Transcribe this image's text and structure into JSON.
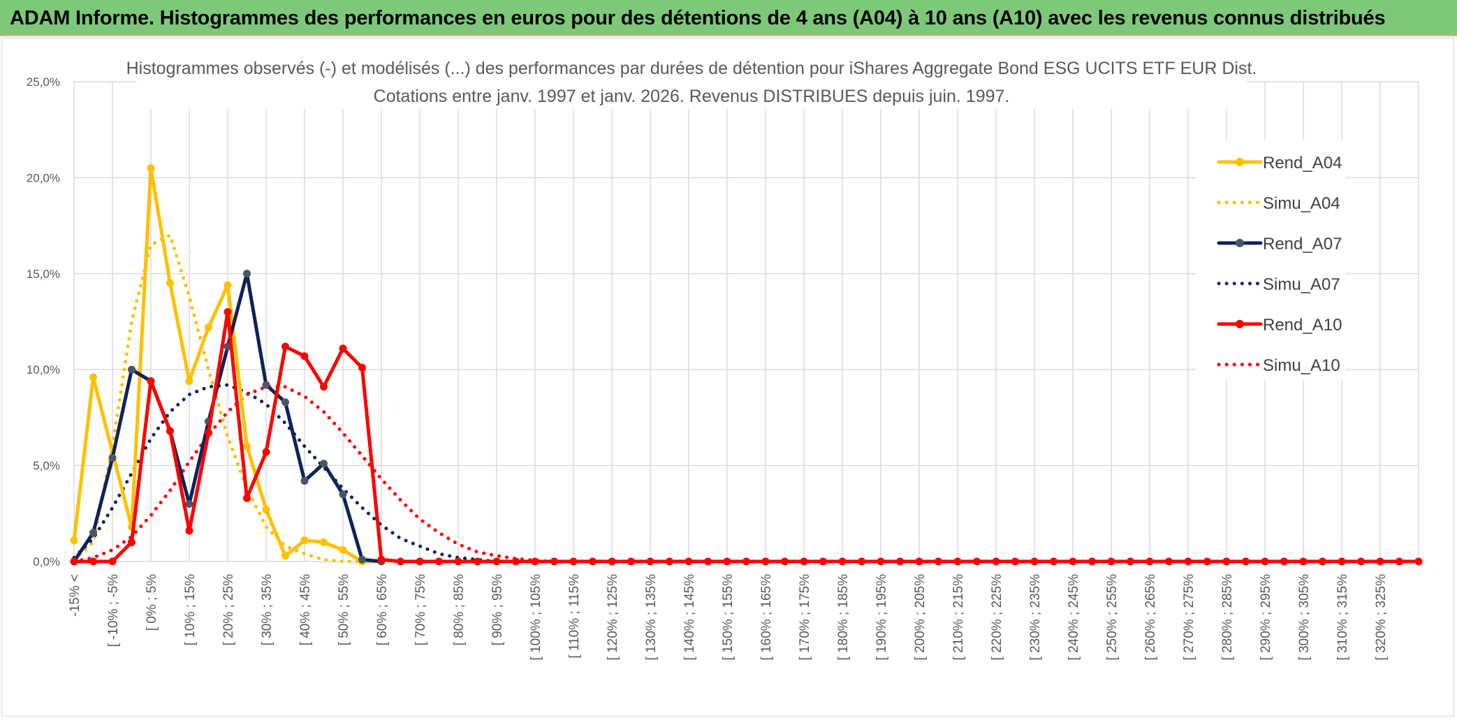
{
  "header": {
    "title": "ADAM Informe. Histogrammes des performances en euros pour des détentions de 4 ans (A04) à 10 ans (A10) avec les revenus connus distribués"
  },
  "chart_data": {
    "type": "line",
    "title": "Histogrammes observés (-) et modélisés (...) des performances par durées de détention pour iShares Aggregate Bond ESG UCITS ETF EUR Dist.",
    "subtitle": "Cotations entre janv. 1997 et janv. 2026. Revenus DISTRIBUES depuis juin. 1997.",
    "ylim": [
      0,
      25
    ],
    "yticks": [
      "0,0%",
      "5,0%",
      "10,0%",
      "15,0%",
      "20,0%",
      "25,0%"
    ],
    "grid": true,
    "legend_position": "right",
    "x_labels": [
      "-15% <",
      "[ -10% ; -5%",
      "[ 0% ; 5%",
      "[ 10% ; 15%",
      "[ 20% ; 25%",
      "[ 30% ; 35%",
      "[ 40% ; 45%",
      "[ 50% ; 55%",
      "[ 60% ; 65%",
      "[ 70% ; 75%",
      "[ 80% ; 85%",
      "[ 90% ; 95%",
      "[ 100% ; 105%",
      "[ 110% ; 115%",
      "[ 120% ; 125%",
      "[ 130% ; 135%",
      "[ 140% ; 145%",
      "[ 150% ; 155%",
      "[ 160% ; 165%",
      "[ 170% ; 175%",
      "[ 180% ; 185%",
      "[ 190% ; 195%",
      "[ 200% ; 205%",
      "[ 210% ; 215%",
      "[ 220% ; 225%",
      "[ 230% ; 235%",
      "[ 240% ; 245%",
      "[ 250% ; 255%",
      "[ 260% ; 265%",
      "[ 270% ; 275%",
      "[ 280% ; 285%",
      "[ 290% ; 295%",
      "[ 300% ; 305%",
      "[ 310% ; 315%",
      "[ 320% ; 325%"
    ],
    "series": [
      {
        "name": "Rend_A04",
        "color": "#ffc000",
        "style": "solid",
        "marker": true,
        "points": [
          [
            0,
            1.1
          ],
          [
            1,
            9.6
          ],
          [
            3,
            1.8
          ],
          [
            4,
            20.5
          ],
          [
            5,
            14.5
          ],
          [
            6,
            9.4
          ],
          [
            7,
            12.2
          ],
          [
            8,
            14.4
          ],
          [
            9,
            6.0
          ],
          [
            10,
            2.7
          ],
          [
            11,
            0.3
          ],
          [
            12,
            1.1
          ],
          [
            13,
            1.0
          ],
          [
            14,
            0.6
          ],
          [
            15,
            0.0
          ],
          [
            16,
            0.0
          ]
        ]
      },
      {
        "name": "Simu_A04",
        "color": "#ffc000",
        "style": "dotted",
        "marker": false,
        "points": [
          [
            0,
            0.1
          ],
          [
            1,
            1.0
          ],
          [
            2,
            6.0
          ],
          [
            3,
            12.5
          ],
          [
            4,
            16.5
          ],
          [
            5,
            17.0
          ],
          [
            6,
            13.8
          ],
          [
            7,
            10.0
          ],
          [
            8,
            6.5
          ],
          [
            9,
            3.8
          ],
          [
            10,
            1.8
          ],
          [
            11,
            0.8
          ],
          [
            12,
            0.4
          ],
          [
            13,
            0.1
          ],
          [
            14,
            0.0
          ],
          [
            15,
            0.0
          ]
        ]
      },
      {
        "name": "Rend_A07",
        "color": "#0e2359",
        "style": "solid",
        "marker": true,
        "points": [
          [
            0,
            0.0
          ],
          [
            1,
            1.5
          ],
          [
            2,
            5.4
          ],
          [
            3,
            10.0
          ],
          [
            4,
            9.4
          ],
          [
            5,
            6.8
          ],
          [
            6,
            3.0
          ],
          [
            7,
            7.3
          ],
          [
            8,
            11.2
          ],
          [
            9,
            15.0
          ],
          [
            10,
            9.2
          ],
          [
            11,
            8.3
          ],
          [
            12,
            4.2
          ],
          [
            13,
            5.1
          ],
          [
            14,
            3.5
          ],
          [
            15,
            0.1
          ],
          [
            16,
            0.0
          ]
        ]
      },
      {
        "name": "Simu_A07",
        "color": "#0e2359",
        "style": "dotted",
        "marker": false,
        "points": [
          [
            0,
            0.2
          ],
          [
            1,
            1.2
          ],
          [
            2,
            2.8
          ],
          [
            3,
            4.6
          ],
          [
            4,
            6.4
          ],
          [
            5,
            7.8
          ],
          [
            6,
            8.7
          ],
          [
            7,
            9.1
          ],
          [
            8,
            9.2
          ],
          [
            9,
            8.8
          ],
          [
            10,
            8.2
          ],
          [
            11,
            7.2
          ],
          [
            12,
            6.0
          ],
          [
            13,
            4.9
          ],
          [
            14,
            3.8
          ],
          [
            15,
            2.8
          ],
          [
            16,
            1.9
          ],
          [
            17,
            1.2
          ],
          [
            18,
            0.8
          ],
          [
            19,
            0.4
          ],
          [
            20,
            0.2
          ],
          [
            21,
            0.1
          ],
          [
            22,
            0.0
          ],
          [
            23,
            0.0
          ]
        ]
      },
      {
        "name": "Rend_A10",
        "color": "#ff0000",
        "style": "solid",
        "marker": true,
        "points": [
          [
            0,
            0.0
          ],
          [
            1,
            0.0
          ],
          [
            2,
            0.0
          ],
          [
            3,
            1.0
          ],
          [
            4,
            9.4
          ],
          [
            5,
            6.8
          ],
          [
            6,
            1.6
          ],
          [
            7,
            6.7
          ],
          [
            8,
            13.0
          ],
          [
            9,
            3.3
          ],
          [
            10,
            5.7
          ],
          [
            11,
            11.2
          ],
          [
            12,
            10.7
          ],
          [
            13,
            9.1
          ],
          [
            14,
            11.1
          ],
          [
            15,
            10.1
          ],
          [
            16,
            0.1
          ],
          [
            17,
            0.0
          ],
          [
            18,
            0.0
          ],
          [
            19,
            0.0
          ],
          [
            20,
            0.0
          ],
          [
            21,
            0.0
          ],
          [
            22,
            0.0
          ],
          [
            23,
            0.0
          ],
          [
            24,
            0.0
          ],
          [
            25,
            0.0
          ],
          [
            26,
            0.0
          ],
          [
            27,
            0.0
          ],
          [
            28,
            0.0
          ],
          [
            29,
            0.0
          ],
          [
            30,
            0.0
          ],
          [
            31,
            0.0
          ],
          [
            32,
            0.0
          ],
          [
            33,
            0.0
          ],
          [
            34,
            0.0
          ],
          [
            35,
            0.0
          ],
          [
            36,
            0.0
          ],
          [
            37,
            0.0
          ],
          [
            38,
            0.0
          ],
          [
            39,
            0.0
          ],
          [
            40,
            0.0
          ],
          [
            41,
            0.0
          ],
          [
            42,
            0.0
          ],
          [
            43,
            0.0
          ],
          [
            44,
            0.0
          ],
          [
            45,
            0.0
          ],
          [
            46,
            0.0
          ],
          [
            47,
            0.0
          ],
          [
            48,
            0.0
          ],
          [
            49,
            0.0
          ],
          [
            50,
            0.0
          ],
          [
            51,
            0.0
          ],
          [
            52,
            0.0
          ],
          [
            53,
            0.0
          ],
          [
            54,
            0.0
          ],
          [
            55,
            0.0
          ],
          [
            56,
            0.0
          ],
          [
            57,
            0.0
          ],
          [
            58,
            0.0
          ],
          [
            59,
            0.0
          ],
          [
            60,
            0.0
          ],
          [
            61,
            0.0
          ],
          [
            62,
            0.0
          ],
          [
            63,
            0.0
          ],
          [
            64,
            0.0
          ],
          [
            65,
            0.0
          ],
          [
            66,
            0.0
          ],
          [
            67,
            0.0
          ],
          [
            68,
            0.0
          ],
          [
            69,
            0.0
          ],
          [
            70,
            0.0
          ]
        ]
      },
      {
        "name": "Simu_A10",
        "color": "#ff0000",
        "style": "dotted",
        "marker": false,
        "points": [
          [
            0,
            0.0
          ],
          [
            1,
            0.2
          ],
          [
            2,
            0.6
          ],
          [
            3,
            1.3
          ],
          [
            4,
            2.4
          ],
          [
            5,
            3.7
          ],
          [
            6,
            5.2
          ],
          [
            7,
            6.6
          ],
          [
            8,
            7.8
          ],
          [
            9,
            8.7
          ],
          [
            10,
            9.1
          ],
          [
            11,
            9.1
          ],
          [
            12,
            8.6
          ],
          [
            13,
            7.8
          ],
          [
            14,
            6.7
          ],
          [
            15,
            5.5
          ],
          [
            16,
            4.3
          ],
          [
            17,
            3.2
          ],
          [
            18,
            2.2
          ],
          [
            19,
            1.5
          ],
          [
            20,
            0.9
          ],
          [
            21,
            0.5
          ],
          [
            22,
            0.3
          ],
          [
            23,
            0.15
          ],
          [
            24,
            0.05
          ],
          [
            25,
            0.0
          ],
          [
            26,
            0.0
          ]
        ]
      }
    ]
  }
}
